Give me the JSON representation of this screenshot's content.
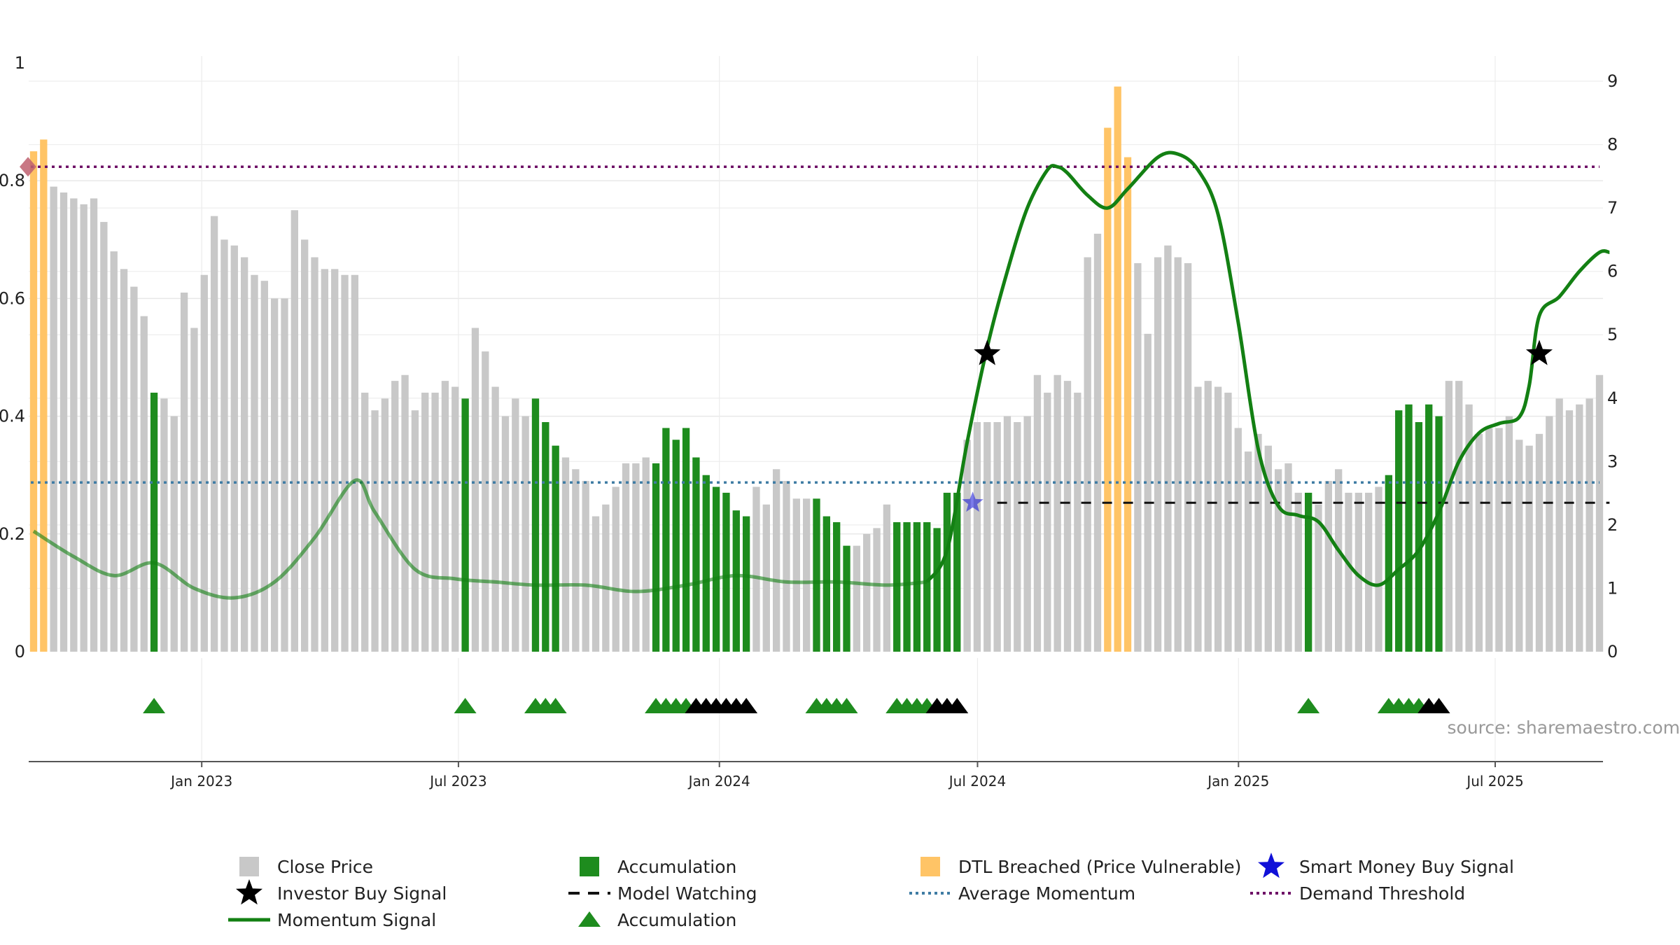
{
  "chart_data": {
    "type": "bar",
    "source_text": "source: sharemaestro.com",
    "x_axis": {
      "start": "2022-09-01",
      "end": "2025-09-15",
      "ticks": [
        "Jan 2023",
        "Jul 2023",
        "Jan 2024",
        "Jul 2024",
        "Jan 2025",
        "Jul 2025"
      ]
    },
    "y_left": {
      "ylim": [
        0,
        1
      ],
      "ticks": [
        "0",
        "0.2",
        "0.4",
        "0.6",
        "0.8",
        "1"
      ]
    },
    "y_right": {
      "ylim": [
        0,
        9
      ],
      "ticks": [
        "0",
        "1",
        "2",
        "3",
        "4",
        "5",
        "6",
        "7",
        "8",
        "9"
      ]
    },
    "grid": true,
    "legend_position": "bottom",
    "colors": {
      "close": "#c8c8c8",
      "accumulation": "#1e8c1e",
      "dtl": "#ffc466",
      "momentum": "#138013",
      "average_momentum": "#3f7ca4",
      "demand_threshold": "#6e1066",
      "smart_money": "#1010d8",
      "investor": "#000000"
    },
    "close_price_values": [
      0.85,
      0.87,
      0.79,
      0.78,
      0.77,
      0.76,
      0.77,
      0.73,
      0.68,
      0.65,
      0.62,
      0.57,
      0.44,
      0.43,
      0.4,
      0.61,
      0.55,
      0.64,
      0.74,
      0.7,
      0.69,
      0.67,
      0.64,
      0.63,
      0.6,
      0.6,
      0.75,
      0.7,
      0.67,
      0.65,
      0.65,
      0.64,
      0.64,
      0.44,
      0.41,
      0.43,
      0.46,
      0.47,
      0.41,
      0.44,
      0.44,
      0.46,
      0.45,
      0.43,
      0.55,
      0.51,
      0.45,
      0.4,
      0.43,
      0.4,
      0.43,
      0.39,
      0.35,
      0.33,
      0.31,
      0.29,
      0.23,
      0.25,
      0.28,
      0.32,
      0.32,
      0.33,
      0.32,
      0.38,
      0.36,
      0.38,
      0.33,
      0.3,
      0.28,
      0.27,
      0.24,
      0.23,
      0.28,
      0.25,
      0.31,
      0.29,
      0.26,
      0.26,
      0.26,
      0.23,
      0.22,
      0.18,
      0.18,
      0.2,
      0.21,
      0.25,
      0.22,
      0.22,
      0.22,
      0.22,
      0.21,
      0.27,
      0.27,
      0.36,
      0.39,
      0.39,
      0.39,
      0.4,
      0.39,
      0.4,
      0.47,
      0.44,
      0.47,
      0.46,
      0.44,
      0.67,
      0.71,
      0.89,
      0.96,
      0.84,
      0.66,
      0.54,
      0.67,
      0.69,
      0.67,
      0.66,
      0.45,
      0.46,
      0.45,
      0.44,
      0.38,
      0.34,
      0.37,
      0.35,
      0.31,
      0.32,
      0.27,
      0.27,
      0.25,
      0.29,
      0.31,
      0.27,
      0.27,
      0.27,
      0.28,
      0.3,
      0.41,
      0.42,
      0.39,
      0.42,
      0.4,
      0.46,
      0.46,
      0.42,
      0.37,
      0.38,
      0.38,
      0.4,
      0.36,
      0.35,
      0.37,
      0.4,
      0.43,
      0.41,
      0.42,
      0.43,
      0.47
    ],
    "accumulation_bars": [
      12,
      43,
      50,
      51,
      52,
      62,
      63,
      64,
      65,
      66,
      67,
      68,
      69,
      70,
      71,
      78,
      79,
      80,
      81,
      86,
      87,
      88,
      89,
      90,
      91,
      92,
      127,
      135,
      136,
      137,
      138,
      139,
      140
    ],
    "dtl_breached_bars": [
      0,
      1,
      107,
      108,
      109
    ],
    "momentum_signal": [
      [
        0,
        1.9
      ],
      [
        4,
        1.5
      ],
      [
        8,
        1.2
      ],
      [
        12,
        1.4
      ],
      [
        16,
        1.0
      ],
      [
        20,
        0.85
      ],
      [
        24,
        1.1
      ],
      [
        28,
        1.8
      ],
      [
        32,
        2.7
      ],
      [
        34,
        2.2
      ],
      [
        38,
        1.3
      ],
      [
        42,
        1.15
      ],
      [
        46,
        1.1
      ],
      [
        50,
        1.05
      ],
      [
        55,
        1.05
      ],
      [
        60,
        0.95
      ],
      [
        65,
        1.05
      ],
      [
        70,
        1.2
      ],
      [
        75,
        1.1
      ],
      [
        80,
        1.1
      ],
      [
        85,
        1.05
      ],
      [
        89,
        1.1
      ],
      [
        91,
        1.6
      ],
      [
        93,
        3.3
      ],
      [
        95,
        4.8
      ],
      [
        97,
        6.0
      ],
      [
        99,
        7.0
      ],
      [
        101,
        7.6
      ],
      [
        102,
        7.65
      ],
      [
        103,
        7.55
      ],
      [
        105,
        7.2
      ],
      [
        107,
        7.0
      ],
      [
        109,
        7.3
      ],
      [
        112,
        7.8
      ],
      [
        114,
        7.85
      ],
      [
        116,
        7.6
      ],
      [
        118,
        6.9
      ],
      [
        120,
        5.2
      ],
      [
        122,
        3.2
      ],
      [
        124,
        2.3
      ],
      [
        126,
        2.15
      ],
      [
        128,
        2.05
      ],
      [
        130,
        1.6
      ],
      [
        132,
        1.2
      ],
      [
        134,
        1.05
      ],
      [
        136,
        1.3
      ],
      [
        138,
        1.6
      ],
      [
        140,
        2.2
      ],
      [
        142,
        3.0
      ],
      [
        144,
        3.45
      ],
      [
        146,
        3.6
      ],
      [
        148,
        3.7
      ],
      [
        149,
        4.2
      ],
      [
        150,
        5.3
      ],
      [
        152,
        5.6
      ],
      [
        154,
        6.0
      ],
      [
        156,
        6.3
      ],
      [
        157,
        6.3
      ]
    ],
    "momentum_signal_end_index": 89,
    "average_momentum": 2.67,
    "demand_threshold": 7.65,
    "model_watching": {
      "from": 96,
      "to": 157,
      "y": 2.35
    },
    "investor_buy_signals": [
      [
        95,
        4.7
      ],
      [
        150,
        4.7
      ]
    ],
    "smart_money_buy_signals": [
      [
        93,
        2.35
      ]
    ],
    "accumulation_triangles": [
      12,
      43,
      50,
      51,
      52,
      62,
      63,
      64,
      65,
      78,
      79,
      80,
      81,
      86,
      87,
      88,
      89,
      127,
      135,
      136,
      137,
      138
    ],
    "model_watching_triangles": [
      66,
      67,
      68,
      69,
      70,
      71,
      90,
      91,
      92,
      139,
      140
    ],
    "legend": {
      "close_price": "Close Price",
      "accumulation": "Accumulation",
      "dtl": "DTL Breached (Price Vulnerable)",
      "smart_money": "Smart Money Buy Signal",
      "investor": "Investor Buy Signal",
      "model_watching": "Model Watching",
      "average_momentum": "Average Momentum",
      "demand_threshold": "Demand Threshold",
      "momentum": "Momentum Signal",
      "accumulation_triangle": "Accumulation"
    }
  }
}
